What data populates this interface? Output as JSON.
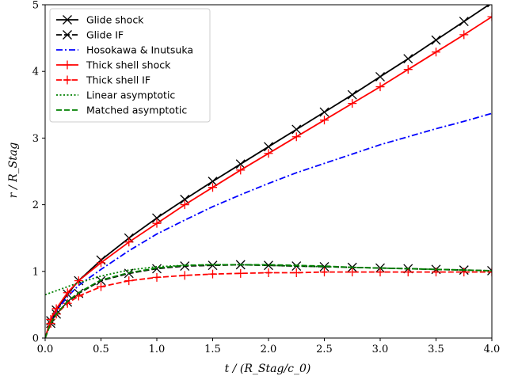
{
  "chart_data": {
    "type": "line",
    "xlabel": "t / (R_Stag/c_0)",
    "ylabel": "r / R_Stag",
    "xlim": [
      0.0,
      4.0
    ],
    "ylim": [
      0,
      5
    ],
    "x_ticks": [
      "0.0",
      "0.5",
      "1.0",
      "1.5",
      "2.0",
      "2.5",
      "3.0",
      "3.5",
      "4.0"
    ],
    "y_ticks": [
      "0",
      "1",
      "2",
      "3",
      "4",
      "5"
    ],
    "grid": false,
    "legend_position": "top-left",
    "series": [
      {
        "name": "Glide shock",
        "color": "#000000",
        "dash": "solid",
        "marker": "x",
        "x": [
          0.0,
          0.05,
          0.1,
          0.2,
          0.3,
          0.5,
          0.75,
          1.0,
          1.25,
          1.5,
          1.75,
          2.0,
          2.25,
          2.5,
          2.75,
          3.0,
          3.25,
          3.5,
          3.75,
          4.0
        ],
        "y": [
          0.0,
          0.26,
          0.42,
          0.66,
          0.86,
          1.17,
          1.5,
          1.8,
          2.08,
          2.35,
          2.61,
          2.87,
          3.13,
          3.39,
          3.65,
          3.92,
          4.19,
          4.47,
          4.75,
          5.03
        ]
      },
      {
        "name": "Glide IF",
        "color": "#000000",
        "dash": "dashed",
        "marker": "x",
        "x": [
          0.0,
          0.05,
          0.1,
          0.2,
          0.3,
          0.5,
          0.75,
          1.0,
          1.25,
          1.5,
          1.75,
          2.0,
          2.25,
          2.5,
          2.75,
          3.0,
          3.25,
          3.5,
          3.75,
          4.0
        ],
        "y": [
          0.0,
          0.22,
          0.36,
          0.54,
          0.67,
          0.86,
          0.97,
          1.04,
          1.08,
          1.09,
          1.1,
          1.09,
          1.08,
          1.07,
          1.06,
          1.05,
          1.04,
          1.03,
          1.02,
          1.01
        ]
      },
      {
        "name": "Hosokawa & Inutsuka",
        "color": "#0000ff",
        "dash": "dashdot",
        "marker": "none",
        "x": [
          0.0,
          0.05,
          0.1,
          0.2,
          0.3,
          0.5,
          0.75,
          1.0,
          1.25,
          1.5,
          1.75,
          2.0,
          2.25,
          2.5,
          2.75,
          3.0,
          3.25,
          3.5,
          3.75,
          4.0
        ],
        "y": [
          0.0,
          0.26,
          0.41,
          0.62,
          0.79,
          1.03,
          1.31,
          1.56,
          1.77,
          1.97,
          2.15,
          2.32,
          2.48,
          2.62,
          2.76,
          2.9,
          3.02,
          3.14,
          3.25,
          3.37
        ]
      },
      {
        "name": "Thick shell shock",
        "color": "#ff0000",
        "dash": "solid",
        "marker": "+",
        "x": [
          0.0,
          0.05,
          0.1,
          0.2,
          0.3,
          0.5,
          0.75,
          1.0,
          1.25,
          1.5,
          1.75,
          2.0,
          2.25,
          2.5,
          2.75,
          3.0,
          3.25,
          3.5,
          3.75,
          4.0
        ],
        "y": [
          0.0,
          0.28,
          0.44,
          0.68,
          0.86,
          1.13,
          1.44,
          1.72,
          2.0,
          2.26,
          2.52,
          2.77,
          3.02,
          3.27,
          3.52,
          3.77,
          4.03,
          4.29,
          4.55,
          4.82
        ]
      },
      {
        "name": "Thick shell IF",
        "color": "#ff0000",
        "dash": "dashed",
        "marker": "+",
        "x": [
          0.0,
          0.05,
          0.1,
          0.2,
          0.3,
          0.5,
          0.75,
          1.0,
          1.25,
          1.5,
          1.75,
          2.0,
          2.25,
          2.5,
          2.75,
          3.0,
          3.25,
          3.5,
          3.75,
          4.0
        ],
        "y": [
          0.0,
          0.22,
          0.36,
          0.52,
          0.63,
          0.77,
          0.86,
          0.91,
          0.94,
          0.96,
          0.97,
          0.98,
          0.98,
          0.99,
          0.99,
          0.99,
          0.99,
          0.99,
          0.99,
          0.99
        ]
      },
      {
        "name": "Linear asymptotic",
        "color": "#008000",
        "dash": "dotted",
        "marker": "none",
        "x": [
          0.0,
          0.25,
          0.5,
          0.75,
          1.0,
          1.25,
          1.5,
          1.75,
          2.0,
          2.25,
          2.5,
          2.75,
          3.0,
          3.25,
          3.5,
          3.75,
          4.0
        ],
        "y": [
          0.65,
          0.8,
          0.93,
          1.02,
          1.07,
          1.09,
          1.1,
          1.1,
          1.09,
          1.08,
          1.07,
          1.06,
          1.05,
          1.04,
          1.03,
          1.02,
          1.01
        ]
      },
      {
        "name": "Matched asymptotic",
        "color": "#008000",
        "dash": "dashed",
        "marker": "none",
        "x": [
          0.0,
          0.05,
          0.1,
          0.2,
          0.3,
          0.5,
          0.75,
          1.0,
          1.25,
          1.5,
          1.75,
          2.0,
          2.25,
          2.5,
          2.75,
          3.0,
          3.25,
          3.5,
          3.75,
          4.0
        ],
        "y": [
          0.0,
          0.22,
          0.36,
          0.55,
          0.68,
          0.87,
          0.98,
          1.05,
          1.09,
          1.1,
          1.1,
          1.1,
          1.09,
          1.08,
          1.06,
          1.05,
          1.04,
          1.03,
          1.02,
          1.01
        ]
      }
    ]
  }
}
